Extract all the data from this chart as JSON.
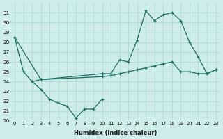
{
  "xlabel": "Humidex (Indice chaleur)",
  "bg_color": "#ceecea",
  "grid_color": "#a8d4d0",
  "line_color": "#1a6b60",
  "xlim": [
    -0.5,
    23.5
  ],
  "ylim": [
    20,
    32
  ],
  "yticks": [
    20,
    21,
    22,
    23,
    24,
    25,
    26,
    27,
    28,
    29,
    30,
    31
  ],
  "xticks": [
    0,
    1,
    2,
    3,
    4,
    5,
    6,
    7,
    8,
    9,
    10,
    11,
    12,
    13,
    14,
    15,
    16,
    17,
    18,
    19,
    20,
    21,
    22,
    23
  ],
  "series": [
    {
      "x": [
        0,
        1,
        2,
        3,
        4,
        5,
        6,
        7,
        8,
        9,
        10
      ],
      "y": [
        28.5,
        25.0,
        24.0,
        23.2,
        22.2,
        21.8,
        21.5,
        20.3,
        21.2,
        21.2,
        22.2
      ]
    },
    {
      "comment": "cross-line from 0,28.5 to 3,24.2 then to 10,24.8",
      "x": [
        0,
        3,
        10
      ],
      "y": [
        28.5,
        24.2,
        24.8
      ]
    },
    {
      "x": [
        2,
        3,
        10,
        11,
        12,
        13,
        14,
        15,
        16,
        17,
        18,
        19,
        20,
        21,
        22,
        23
      ],
      "y": [
        24.0,
        24.2,
        24.5,
        24.6,
        24.8,
        25.0,
        25.2,
        25.4,
        25.6,
        25.8,
        26.0,
        25.0,
        25.0,
        24.8,
        24.8,
        25.2
      ]
    },
    {
      "x": [
        10,
        11,
        12,
        13,
        14,
        15,
        16,
        17,
        18,
        19,
        20,
        21,
        22,
        23
      ],
      "y": [
        24.8,
        24.8,
        26.2,
        26.0,
        28.2,
        31.2,
        30.2,
        30.8,
        31.0,
        30.2,
        28.0,
        26.5,
        24.8,
        25.2
      ]
    }
  ]
}
